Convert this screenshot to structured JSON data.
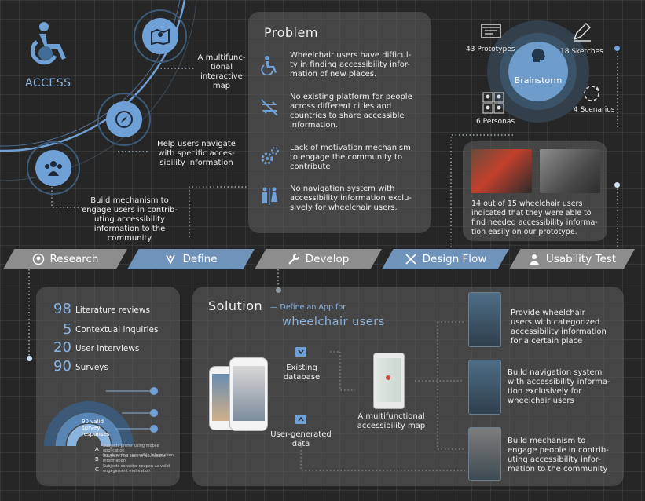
{
  "brand": {
    "label": "ACCESS"
  },
  "left_features": [
    {
      "icon": "map-icon",
      "text": "A multifunc-\ntional\ninteractive\nmap"
    },
    {
      "icon": "compass-icon",
      "text": "Help users navigate\nwith specific acces-\nsibility information"
    },
    {
      "icon": "community-icon",
      "text": "Build mechanism to\nengage users in contrib-\nuting accessibility\ninformation to the\ncommunity"
    }
  ],
  "problem": {
    "title": "Problem",
    "items": [
      {
        "icon": "wheelchair-icon",
        "text": "Wheelchair users have difficul-\nty in finding accessibility infor-\nmation of new places."
      },
      {
        "icon": "no-sharing-icon",
        "text": "No existing platform for people\nacross different cities and\ncountries to share accessible\ninformation."
      },
      {
        "icon": "gears-icon",
        "text": "Lack of motivation mechanism\nto engage the community to\ncontribute"
      },
      {
        "icon": "restroom-icon",
        "text": "No navigation system with\naccessibility information exclu-\nsively for wheelchair users."
      }
    ]
  },
  "brainstorm": {
    "center": "Brainstorm",
    "items": [
      {
        "icon": "prototype-icon",
        "label": "43 Prototypes"
      },
      {
        "icon": "sketch-icon",
        "label": "18 Sketches"
      },
      {
        "icon": "personas-icon",
        "label": "6 Personas"
      },
      {
        "icon": "scenarios-icon",
        "label": "4 Scenarios"
      }
    ]
  },
  "usability": {
    "text": "14 out of 15 wheelchair users\nindicated that they were able to\nfind needed accessibility informa-\ntion easily on our prototype."
  },
  "steps": [
    {
      "icon": "research-icon",
      "label": "Research",
      "style": "g"
    },
    {
      "icon": "define-icon",
      "label": "Define",
      "style": "b"
    },
    {
      "icon": "wrench-icon",
      "label": "Develop",
      "style": "g"
    },
    {
      "icon": "design-icon",
      "label": "Design Flow",
      "style": "b"
    },
    {
      "icon": "test-icon",
      "label": "Usability Test",
      "style": "g"
    }
  ],
  "research": {
    "stats": [
      {
        "num": "98",
        "label": "Literature reviews"
      },
      {
        "num": "5",
        "label": "Contextual inquiries"
      },
      {
        "num": "20",
        "label": "User interviews"
      },
      {
        "num": "90",
        "label": "Surveys"
      }
    ],
    "donut": {
      "center": "90 valid\nsurvey\nresponses",
      "legend": [
        {
          "key": "A",
          "text": "Subjects prefer using mobile application\nfor obtaining accessible information"
        },
        {
          "key": "B",
          "text": "Subjects feel Lack of accessible\ninformation"
        },
        {
          "key": "C",
          "text": "Subjects consider coupon as valid\nengagement motivation"
        }
      ]
    }
  },
  "solution": {
    "title": "Solution",
    "subtitle_a": "— Define an App for",
    "subtitle_b": "wheelchair users",
    "existing_db": "Existing\ndatabase",
    "user_data": "User-generated\ndata",
    "map_label": "A multifunctional\naccessibility map",
    "features": [
      {
        "text": "Provide wheelchair\nusers with categorized\naccessibility information\nfor a certain place"
      },
      {
        "text": "Build navigation system\nwith accessibility informa-\ntion exclusively for\nwheelchair users"
      },
      {
        "text": "Build mechanism to\nengage people in contrib-\nuting accessibility infor-\nmation to the community"
      }
    ]
  },
  "colors": {
    "accent": "#6fa0d6",
    "blue_step": "#6f93ba",
    "grey_step": "#8d8d8d",
    "panel": "#5a5a5a",
    "background": "#262626"
  }
}
